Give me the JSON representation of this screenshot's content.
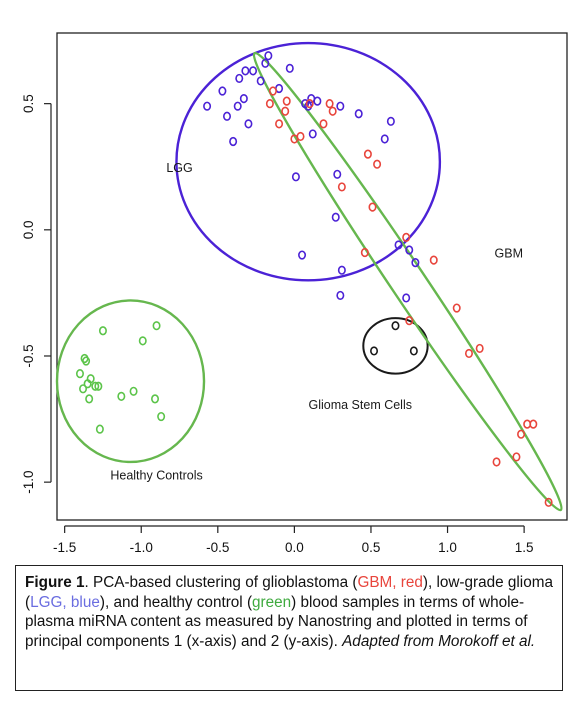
{
  "chart_data": {
    "type": "scatter",
    "title": "",
    "xlabel": "",
    "ylabel": "",
    "xlim": [
      -1.55,
      1.78
    ],
    "ylim": [
      -1.15,
      0.78
    ],
    "xticks": [
      -1.5,
      -1.0,
      -0.5,
      0.0,
      0.5,
      1.0,
      1.5
    ],
    "xtick_labels": [
      "-1.5",
      "-1.0",
      "-0.5",
      "0.0",
      "0.5",
      "1.0",
      "1.5"
    ],
    "yticks": [
      -1.0,
      -0.5,
      0.0,
      0.5
    ],
    "ytick_labels": [
      "-1.0",
      "-0.5",
      "0.0",
      "0.5"
    ],
    "grid": false,
    "series": [
      {
        "key": "lgg",
        "color": "#4b22d6",
        "points": [
          [
            -0.57,
            0.49
          ],
          [
            -0.47,
            0.55
          ],
          [
            -0.44,
            0.45
          ],
          [
            -0.37,
            0.49
          ],
          [
            -0.36,
            0.6
          ],
          [
            -0.32,
            0.63
          ],
          [
            -0.27,
            0.63
          ],
          [
            -0.22,
            0.59
          ],
          [
            -0.19,
            0.66
          ],
          [
            -0.17,
            0.69
          ],
          [
            -0.1,
            0.56
          ],
          [
            -0.03,
            0.64
          ],
          [
            -0.33,
            0.52
          ],
          [
            -0.3,
            0.42
          ],
          [
            -0.4,
            0.35
          ],
          [
            0.07,
            0.5
          ],
          [
            0.11,
            0.52
          ],
          [
            0.15,
            0.51
          ],
          [
            0.09,
            0.49
          ],
          [
            0.12,
            0.38
          ],
          [
            0.01,
            0.21
          ],
          [
            0.3,
            0.49
          ],
          [
            0.42,
            0.46
          ],
          [
            0.28,
            0.22
          ],
          [
            0.27,
            0.05
          ],
          [
            0.63,
            0.43
          ],
          [
            0.59,
            0.36
          ],
          [
            0.05,
            -0.1
          ],
          [
            0.31,
            -0.16
          ],
          [
            0.68,
            -0.06
          ],
          [
            0.75,
            -0.08
          ],
          [
            0.79,
            -0.13
          ],
          [
            0.3,
            -0.26
          ],
          [
            0.73,
            -0.27
          ]
        ]
      },
      {
        "key": "gbm",
        "color": "#e8453c",
        "points": [
          [
            -0.14,
            0.55
          ],
          [
            -0.06,
            0.47
          ],
          [
            -0.16,
            0.5
          ],
          [
            -0.1,
            0.42
          ],
          [
            0.0,
            0.36
          ],
          [
            0.04,
            0.37
          ],
          [
            0.1,
            0.5
          ],
          [
            0.19,
            0.42
          ],
          [
            0.23,
            0.5
          ],
          [
            0.25,
            0.47
          ],
          [
            0.31,
            0.17
          ],
          [
            0.48,
            0.3
          ],
          [
            0.54,
            0.26
          ],
          [
            0.51,
            0.09
          ],
          [
            0.73,
            -0.03
          ],
          [
            0.46,
            -0.09
          ],
          [
            0.91,
            -0.12
          ],
          [
            0.75,
            -0.36
          ],
          [
            1.06,
            -0.31
          ],
          [
            1.14,
            -0.49
          ],
          [
            1.21,
            -0.47
          ],
          [
            1.32,
            -0.92
          ],
          [
            1.45,
            -0.9
          ],
          [
            1.48,
            -0.81
          ],
          [
            1.52,
            -0.77
          ],
          [
            1.56,
            -0.77
          ],
          [
            1.66,
            -1.08
          ],
          [
            -0.05,
            0.51
          ]
        ]
      },
      {
        "key": "healthy",
        "color": "#5cc44a",
        "points": [
          [
            -1.37,
            -0.51
          ],
          [
            -1.36,
            -0.52
          ],
          [
            -1.4,
            -0.57
          ],
          [
            -1.35,
            -0.61
          ],
          [
            -1.33,
            -0.59
          ],
          [
            -1.3,
            -0.62
          ],
          [
            -1.38,
            -0.63
          ],
          [
            -1.34,
            -0.67
          ],
          [
            -1.28,
            -0.62
          ],
          [
            -1.25,
            -0.4
          ],
          [
            -0.99,
            -0.44
          ],
          [
            -0.9,
            -0.38
          ],
          [
            -1.13,
            -0.66
          ],
          [
            -1.05,
            -0.64
          ],
          [
            -0.91,
            -0.67
          ],
          [
            -0.87,
            -0.74
          ],
          [
            -1.27,
            -0.79
          ]
        ]
      },
      {
        "key": "gsc",
        "color": "#1a1a1a",
        "points": [
          [
            0.66,
            -0.38
          ],
          [
            0.52,
            -0.48
          ],
          [
            0.78,
            -0.48
          ]
        ]
      }
    ],
    "clusters": [
      {
        "key": "lgg",
        "color": "#4b22d6",
        "shape": "circle",
        "cx": 0.09,
        "cy": 0.27,
        "rx": 0.86,
        "ry": 0.47
      },
      {
        "key": "healthy",
        "color": "#66b74e",
        "shape": "ellipse",
        "cx": -1.07,
        "cy": -0.6,
        "rx": 0.48,
        "ry": 0.32
      },
      {
        "key": "gsc",
        "color": "#1a1a1a",
        "shape": "circle",
        "cx": 0.66,
        "cy": -0.46,
        "rx": 0.21,
        "ry": 0.11
      },
      {
        "key": "gbm",
        "color": "#66b74e",
        "shape": "rotated-ellipse",
        "x1": -0.26,
        "y1": 0.7,
        "x2": 1.74,
        "y2": -1.11,
        "halfwidth": 0.09
      }
    ],
    "annotations": [
      {
        "key": "lgg",
        "text": "LGG",
        "x": -0.75,
        "y": 0.23
      },
      {
        "key": "gbm",
        "text": "GBM",
        "x": 1.4,
        "y": -0.11
      },
      {
        "key": "gsc",
        "text": "Glioma Stem Cells",
        "x": 0.43,
        "y": -0.71
      },
      {
        "key": "healthy",
        "text": "Healthy Controls",
        "x": -0.9,
        "y": -0.99
      }
    ]
  },
  "caption": {
    "figure_label": "Figure 1",
    "text_1": ". PCA-based clustering of glioblastoma (",
    "gbm_label": "GBM, red",
    "text_2": "), low-grade glioma (",
    "lgg_label": "LGG, blue",
    "text_3": "), and healthy control (",
    "green_label": "green",
    "text_4": ") blood samples in terms of whole-plasma miRNA content as measured by Nanostring and plotted in terms of principal components 1 (x-axis) and 2 (y-axis). ",
    "attribution": "Adapted from Morokoff et al.",
    "colors": {
      "gbm": "#e8453c",
      "lgg": "#6a6de0",
      "green": "#3faa3f"
    }
  }
}
